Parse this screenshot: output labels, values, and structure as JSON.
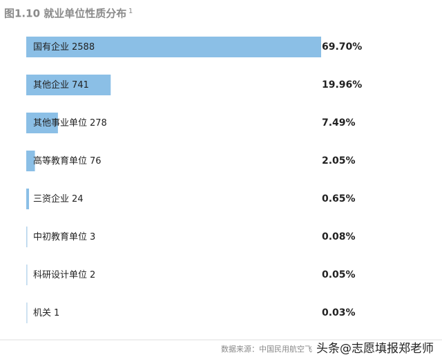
{
  "chart_data": {
    "type": "bar",
    "orientation": "horizontal",
    "title": "图1.10 就业单位性质分布",
    "title_note": "1",
    "categories": [
      "国有企业",
      "其他企业",
      "其他事业单位",
      "高等教育单位",
      "三资企业",
      "中初教育单位",
      "科研设计单位",
      "机关"
    ],
    "counts": [
      2588,
      741,
      278,
      76,
      24,
      3,
      2,
      1
    ],
    "values": [
      69.7,
      19.96,
      7.49,
      2.05,
      0.65,
      0.08,
      0.05,
      0.03
    ],
    "value_labels": [
      "69.70%",
      "19.96%",
      "7.49%",
      "2.05%",
      "0.65%",
      "0.08%",
      "0.05%",
      "0.03%"
    ],
    "color": "#8bbfe6",
    "source": "数据来源：中国民用航空飞",
    "watermark": "头条@志愿填报郑老师"
  }
}
